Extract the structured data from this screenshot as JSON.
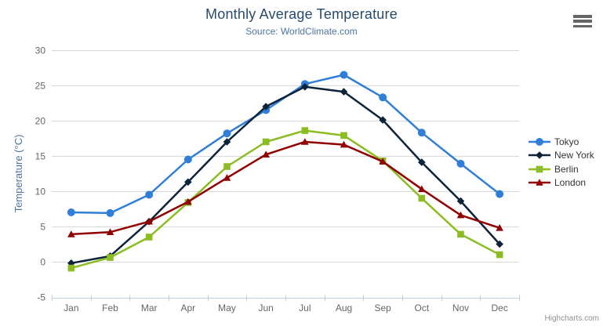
{
  "chart_data": {
    "type": "line",
    "title": "Monthly Average Temperature",
    "subtitle": "Source: WorldClimate.com",
    "xlabel": "",
    "ylabel": "Temperature (°C)",
    "categories": [
      "Jan",
      "Feb",
      "Mar",
      "Apr",
      "May",
      "Jun",
      "Jul",
      "Aug",
      "Sep",
      "Oct",
      "Nov",
      "Dec"
    ],
    "ylim": [
      -5,
      30
    ],
    "ytick_interval": 5,
    "yticks": [
      -5,
      0,
      5,
      10,
      15,
      20,
      25,
      30
    ],
    "grid": true,
    "legend_position": "right",
    "series": [
      {
        "name": "Tokyo",
        "color": "#2f7ed8",
        "marker": "circle",
        "values": [
          7.0,
          6.9,
          9.5,
          14.5,
          18.2,
          21.5,
          25.2,
          26.5,
          23.3,
          18.3,
          13.9,
          9.6
        ]
      },
      {
        "name": "New York",
        "color": "#0d233a",
        "marker": "diamond",
        "values": [
          -0.2,
          0.8,
          5.7,
          11.3,
          17.0,
          22.0,
          24.8,
          24.1,
          20.1,
          14.1,
          8.6,
          2.5
        ]
      },
      {
        "name": "Berlin",
        "color": "#8bbc21",
        "marker": "square",
        "values": [
          -0.9,
          0.6,
          3.5,
          8.4,
          13.5,
          17.0,
          18.6,
          17.9,
          14.3,
          9.0,
          3.9,
          1.0
        ]
      },
      {
        "name": "London",
        "color": "#910000",
        "marker": "triangle",
        "values": [
          3.9,
          4.2,
          5.7,
          8.5,
          11.9,
          15.2,
          17.0,
          16.6,
          14.2,
          10.3,
          6.6,
          4.8
        ]
      }
    ],
    "colors": {
      "title": "#274b6d",
      "subtitle": "#4d759e",
      "axis_title": "#4d759e",
      "tick_label": "#666666",
      "gridline": "#d8d8d8",
      "axis_line": "#c0d0e0",
      "legend_text": "#333333",
      "credit_text": "#909090"
    },
    "credit": "Highcharts.com"
  },
  "icons": {
    "context_menu": "hamburger-icon"
  }
}
